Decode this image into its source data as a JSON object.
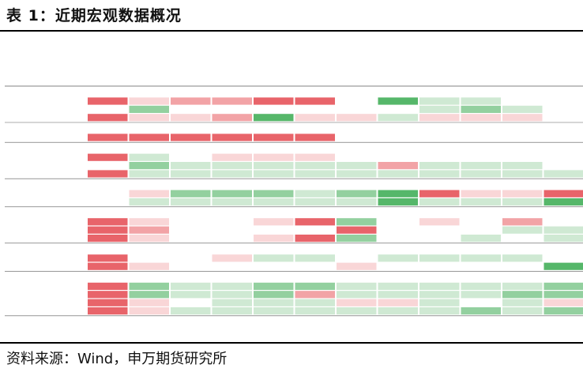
{
  "title": "表 1：近期宏观数据概况",
  "source": "资料来源：Wind，申万期货研究所",
  "table": {
    "header_label": "",
    "periods": [
      "",
      "",
      "",
      "",
      "",
      "",
      "",
      "",
      "",
      "",
      "",
      ""
    ],
    "sections": [
      {
        "label": "",
        "rows": [
          {
            "label": "",
            "values": [
              "",
              "",
              "",
              "",
              "",
              "",
              "",
              "",
              "",
              "",
              "",
              ""
            ]
          },
          {
            "label": "",
            "values": [
              "",
              "",
              "",
              "",
              "",
              "",
              "",
              "",
              "",
              "",
              "",
              ""
            ]
          },
          {
            "label": "",
            "values": [
              "",
              "",
              "",
              "",
              "",
              "",
              "",
              "",
              "",
              "",
              "",
              ""
            ]
          }
        ]
      },
      {
        "label": "",
        "rows": [
          {
            "label": "",
            "values": [
              "",
              "",
              "",
              "",
              "",
              "",
              "",
              "",
              "",
              "",
              "",
              ""
            ]
          }
        ]
      },
      {
        "label": "",
        "rows": [
          {
            "label": "",
            "values": [
              "",
              "",
              "",
              "",
              "",
              "",
              "",
              "",
              "",
              "",
              "",
              ""
            ]
          },
          {
            "label": "",
            "values": [
              "",
              "",
              "",
              "",
              "",
              "",
              "",
              "",
              "",
              "",
              "",
              ""
            ]
          },
          {
            "label": "",
            "values": [
              "",
              "",
              "",
              "",
              "",
              "",
              "",
              "",
              "",
              "",
              "",
              ""
            ]
          }
        ]
      },
      {
        "label": "",
        "rows": [
          {
            "label": "",
            "values": [
              "",
              "",
              "",
              "",
              "",
              "",
              "",
              "",
              "",
              "",
              "",
              ""
            ]
          },
          {
            "label": "",
            "values": [
              "",
              "",
              "",
              "",
              "",
              "",
              "",
              "",
              "",
              "",
              "",
              ""
            ]
          }
        ]
      },
      {
        "label": "",
        "rows": [
          {
            "label": "",
            "values": [
              "",
              "",
              "",
              "",
              "",
              "",
              "",
              "",
              "",
              "",
              "",
              ""
            ]
          },
          {
            "label": "",
            "values": [
              "",
              "",
              "",
              "",
              "",
              "",
              "",
              "",
              "",
              "",
              "",
              ""
            ]
          },
          {
            "label": "",
            "values": [
              "",
              "",
              "",
              "",
              "",
              "",
              "",
              "",
              "",
              "",
              "",
              ""
            ]
          }
        ]
      },
      {
        "label": "",
        "rows": [
          {
            "label": "",
            "values": [
              "",
              "",
              "",
              "",
              "",
              "",
              "",
              "",
              "",
              "",
              "",
              ""
            ]
          },
          {
            "label": "",
            "values": [
              "",
              "",
              "",
              "",
              "",
              "",
              "",
              "",
              "",
              "",
              "",
              ""
            ]
          }
        ]
      },
      {
        "label": "",
        "rows": [
          {
            "label": "",
            "values": [
              "",
              "",
              "",
              "",
              "",
              "",
              "",
              "",
              "",
              "",
              "",
              ""
            ]
          },
          {
            "label": "",
            "values": [
              "",
              "",
              "",
              "",
              "",
              "",
              "",
              "",
              "",
              "",
              "",
              ""
            ]
          },
          {
            "label": "",
            "values": [
              "",
              "",
              "",
              "",
              "",
              "",
              "",
              "",
              "",
              "",
              "",
              ""
            ]
          },
          {
            "label": "",
            "values": [
              "",
              "",
              "",
              "",
              "",
              "",
              "",
              "",
              "",
              "",
              "",
              ""
            ]
          }
        ]
      }
    ],
    "colors": {
      "header_text": "#e0362c",
      "section_text": "#c00000",
      "row_text": "#3a3a8c",
      "value_text": "#333333",
      "rule": "#5a5a5a",
      "red_strong": "#e8646a",
      "red_mid": "#f2a3a6",
      "red_light": "#f9d6d7",
      "green_strong": "#56b76a",
      "green_mid": "#93d09f",
      "green_light": "#cfe9d3",
      "neutral": "#ffffff"
    },
    "shading": [
      [
        "rs",
        "rl",
        "rm",
        "rm",
        "rs",
        "rs",
        "n",
        "gs",
        "gl",
        "gl",
        "n",
        "n"
      ],
      [
        "n",
        "gm",
        "n",
        "n",
        "n",
        "n",
        "n",
        "n",
        "gl",
        "gm",
        "gl",
        "n"
      ],
      [
        "rs",
        "rl",
        "rl",
        "rm",
        "gs",
        "rl",
        "rl",
        "gl",
        "rl",
        "rl",
        "rl",
        "n"
      ],
      [
        "rs",
        "rs",
        "rs",
        "rs",
        "rs",
        "rs",
        "n",
        "n",
        "n",
        "n",
        "n",
        "n"
      ],
      [
        "rs",
        "gl",
        "n",
        "rl",
        "rl",
        "rl",
        "n",
        "n",
        "n",
        "n",
        "n",
        "n"
      ],
      [
        "n",
        "gm",
        "gl",
        "gl",
        "gl",
        "gl",
        "gl",
        "rm",
        "gl",
        "gl",
        "gl",
        "n"
      ],
      [
        "rs",
        "gl",
        "gl",
        "gl",
        "gl",
        "gl",
        "gl",
        "gl",
        "gl",
        "gl",
        "gl",
        "gl"
      ],
      [
        "n",
        "rl",
        "gm",
        "gm",
        "gm",
        "gl",
        "gm",
        "gs",
        "rs",
        "rl",
        "rl",
        "rs"
      ],
      [
        "n",
        "gl",
        "gl",
        "gl",
        "gl",
        "gl",
        "gl",
        "gs",
        "gl",
        "gl",
        "gl",
        "gs"
      ],
      [
        "rs",
        "rl",
        "n",
        "n",
        "rl",
        "rs",
        "gm",
        "n",
        "rl",
        "n",
        "rm",
        "n"
      ],
      [
        "rs",
        "rm",
        "n",
        "n",
        "n",
        "n",
        "rs",
        "n",
        "n",
        "n",
        "gl",
        "gl"
      ],
      [
        "rs",
        "rl",
        "n",
        "n",
        "rl",
        "rs",
        "gm",
        "n",
        "n",
        "gl",
        "n",
        "gl"
      ],
      [
        "rs",
        "n",
        "n",
        "rl",
        "gl",
        "gl",
        "n",
        "gl",
        "gl",
        "gl",
        "gl",
        "n"
      ],
      [
        "rs",
        "rl",
        "n",
        "n",
        "n",
        "n",
        "rl",
        "n",
        "n",
        "n",
        "n",
        "gs"
      ],
      [
        "rs",
        "gm",
        "gl",
        "gl",
        "gm",
        "gm",
        "gl",
        "gl",
        "gl",
        "gl",
        "gl",
        "gm"
      ],
      [
        "rs",
        "gm",
        "gl",
        "gl",
        "gm",
        "rm",
        "gl",
        "gl",
        "gl",
        "gl",
        "gm",
        "gm"
      ],
      [
        "rs",
        "rl",
        "n",
        "gl",
        "gl",
        "gl",
        "rl",
        "rl",
        "gl",
        "n",
        "gl",
        "rl"
      ],
      [
        "rs",
        "rl",
        "gl",
        "gl",
        "gl",
        "gl",
        "gl",
        "gl",
        "gl",
        "gm",
        "gl",
        "gm"
      ]
    ]
  }
}
